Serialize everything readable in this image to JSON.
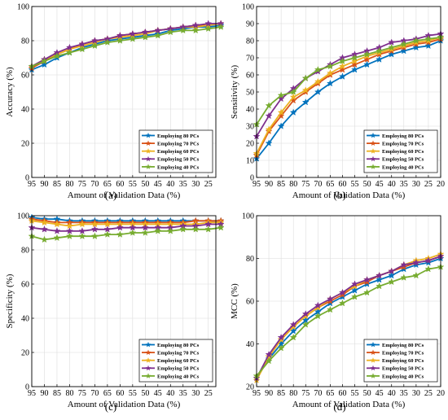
{
  "figure": {
    "background": "#ffffff"
  },
  "chart_data": [
    {
      "type": "line",
      "panel_label": "(a)",
      "xlabel": "Amount of Validation Data (%)",
      "ylabel": "Accuracy (%)",
      "x": [
        95,
        90,
        85,
        80,
        75,
        70,
        65,
        60,
        55,
        50,
        45,
        40,
        35,
        30,
        25,
        20
      ],
      "xticks": [
        95,
        90,
        85,
        80,
        75,
        70,
        65,
        60,
        55,
        50,
        45,
        40,
        35,
        30,
        25
      ],
      "xlim": [
        95,
        22
      ],
      "ylim": [
        0,
        100
      ],
      "yticks": [
        0,
        20,
        40,
        60,
        80,
        100
      ],
      "grid": true,
      "legend_position": "bottom-right",
      "series": [
        {
          "name": "Employing 80 PCs",
          "color": "#0072BD",
          "marker": "star",
          "values": [
            63,
            66,
            70,
            73,
            76,
            78,
            80,
            81,
            82,
            83,
            84,
            86,
            87,
            88,
            88,
            89
          ]
        },
        {
          "name": "Employing 70 PCs",
          "color": "#D95319",
          "marker": "star",
          "values": [
            64,
            68,
            72,
            75,
            78,
            80,
            81,
            83,
            84,
            85,
            86,
            87,
            88,
            89,
            89,
            90
          ]
        },
        {
          "name": "Employing 60 PCs",
          "color": "#EDB120",
          "marker": "star",
          "values": [
            65,
            69,
            72,
            75,
            77,
            79,
            81,
            82,
            83,
            84,
            86,
            87,
            88,
            88,
            89,
            90
          ]
        },
        {
          "name": "Employing 50 PCs",
          "color": "#7E2F8E",
          "marker": "star",
          "values": [
            65,
            69,
            73,
            76,
            78,
            80,
            81,
            83,
            84,
            85,
            86,
            87,
            88,
            89,
            90,
            90
          ]
        },
        {
          "name": "Employing 40 PCs",
          "color": "#77AC30",
          "marker": "star",
          "values": [
            65,
            68,
            71,
            73,
            75,
            77,
            79,
            80,
            81,
            82,
            83,
            85,
            86,
            86,
            87,
            88
          ]
        }
      ]
    },
    {
      "type": "line",
      "panel_label": "(b)",
      "xlabel": "Amount of Validation Data (%)",
      "ylabel": "Sensitivity (%)",
      "x": [
        95,
        90,
        85,
        80,
        75,
        70,
        65,
        60,
        55,
        50,
        45,
        40,
        35,
        30,
        25,
        20
      ],
      "xticks": [
        95,
        90,
        85,
        80,
        75,
        70,
        65,
        60,
        55,
        50,
        45,
        40,
        35,
        30,
        25,
        20
      ],
      "xlim": [
        95,
        20
      ],
      "ylim": [
        0,
        100
      ],
      "yticks": [
        0,
        10,
        20,
        30,
        40,
        50,
        60,
        70,
        80,
        90,
        100
      ],
      "grid": true,
      "legend_position": "bottom-right",
      "series": [
        {
          "name": "Employing 80 PCs",
          "color": "#0072BD",
          "marker": "star",
          "values": [
            11,
            20,
            30,
            38,
            44,
            50,
            55,
            59,
            63,
            66,
            69,
            72,
            74,
            76,
            77,
            80
          ]
        },
        {
          "name": "Employing 70 PCs",
          "color": "#D95319",
          "marker": "star",
          "values": [
            13,
            27,
            36,
            45,
            50,
            55,
            60,
            63,
            66,
            69,
            72,
            74,
            76,
            78,
            79,
            81
          ]
        },
        {
          "name": "Employing 60 PCs",
          "color": "#EDB120",
          "marker": "star",
          "values": [
            14,
            28,
            38,
            47,
            51,
            56,
            61,
            65,
            68,
            71,
            73,
            75,
            77,
            79,
            80,
            82
          ]
        },
        {
          "name": "Employing 50 PCs",
          "color": "#7E2F8E",
          "marker": "star",
          "values": [
            24,
            36,
            46,
            52,
            58,
            62,
            66,
            70,
            72,
            74,
            76,
            79,
            80,
            81,
            83,
            84
          ]
        },
        {
          "name": "Employing 40 PCs",
          "color": "#77AC30",
          "marker": "star",
          "values": [
            31,
            42,
            48,
            50,
            58,
            63,
            65,
            68,
            70,
            72,
            74,
            76,
            78,
            80,
            81,
            82
          ]
        }
      ]
    },
    {
      "type": "line",
      "panel_label": "(c)",
      "xlabel": "Amount of Validation Data (%)",
      "ylabel": "Specificity (%)",
      "x": [
        95,
        90,
        85,
        80,
        75,
        70,
        65,
        60,
        55,
        50,
        45,
        40,
        35,
        30,
        25,
        20
      ],
      "xticks": [
        95,
        90,
        85,
        80,
        75,
        70,
        65,
        60,
        55,
        50,
        45,
        40,
        35,
        30,
        25
      ],
      "xlim": [
        95,
        22
      ],
      "ylim": [
        0,
        100
      ],
      "yticks": [
        0,
        20,
        40,
        60,
        80,
        100
      ],
      "grid": true,
      "legend_position": "bottom-right",
      "series": [
        {
          "name": "Employing 80 PCs",
          "color": "#0072BD",
          "marker": "star",
          "values": [
            99,
            98,
            98,
            97,
            97,
            97,
            97,
            97,
            97,
            97,
            97,
            97,
            97,
            97,
            97,
            97
          ]
        },
        {
          "name": "Employing 70 PCs",
          "color": "#D95319",
          "marker": "star",
          "values": [
            98,
            97,
            96,
            96,
            96,
            96,
            96,
            96,
            96,
            96,
            96,
            96,
            96,
            97,
            97,
            97
          ]
        },
        {
          "name": "Employing 60 PCs",
          "color": "#EDB120",
          "marker": "star",
          "values": [
            97,
            96,
            95,
            94,
            95,
            95,
            95,
            95,
            95,
            95,
            95,
            95,
            95,
            95,
            96,
            96
          ]
        },
        {
          "name": "Employing 50 PCs",
          "color": "#7E2F8E",
          "marker": "star",
          "values": [
            93,
            92,
            91,
            91,
            91,
            92,
            92,
            93,
            93,
            93,
            93,
            93,
            94,
            94,
            95,
            95
          ]
        },
        {
          "name": "Employing 40 PCs",
          "color": "#77AC30",
          "marker": "star",
          "values": [
            88,
            86,
            87,
            88,
            88,
            88,
            89,
            89,
            90,
            90,
            91,
            91,
            92,
            92,
            92,
            93
          ]
        }
      ]
    },
    {
      "type": "line",
      "panel_label": "(d)",
      "xlabel": "Amount of Validation Data (%)",
      "ylabel": "MCC (%)",
      "x": [
        95,
        90,
        85,
        80,
        75,
        70,
        65,
        60,
        55,
        50,
        45,
        40,
        35,
        30,
        25,
        20
      ],
      "xticks": [
        95,
        90,
        85,
        80,
        75,
        70,
        65,
        60,
        55,
        50,
        45,
        40,
        35,
        30,
        25,
        20
      ],
      "xlim": [
        95,
        20
      ],
      "ylim": [
        20,
        100
      ],
      "yticks": [
        20,
        40,
        60,
        80,
        100
      ],
      "grid": true,
      "legend_position": "bottom-right",
      "series": [
        {
          "name": "Employing 80 PCs",
          "color": "#0072BD",
          "marker": "star",
          "values": [
            24,
            33,
            40,
            46,
            51,
            55,
            59,
            62,
            65,
            68,
            70,
            72,
            75,
            77,
            78,
            80
          ]
        },
        {
          "name": "Employing 70 PCs",
          "color": "#D95319",
          "marker": "star",
          "values": [
            24,
            34,
            42,
            48,
            53,
            57,
            60,
            63,
            67,
            69,
            72,
            74,
            76,
            78,
            79,
            81
          ]
        },
        {
          "name": "Employing 60 PCs",
          "color": "#EDB120",
          "marker": "star",
          "values": [
            23,
            34,
            42,
            48,
            53,
            57,
            61,
            64,
            67,
            70,
            72,
            74,
            77,
            79,
            80,
            82
          ]
        },
        {
          "name": "Employing 50 PCs",
          "color": "#7E2F8E",
          "marker": "star",
          "values": [
            24,
            35,
            43,
            49,
            54,
            58,
            61,
            64,
            68,
            70,
            72,
            74,
            77,
            78,
            79,
            81
          ]
        },
        {
          "name": "Employing 40 PCs",
          "color": "#77AC30",
          "marker": "star",
          "values": [
            25,
            32,
            38,
            43,
            49,
            53,
            56,
            59,
            62,
            64,
            67,
            69,
            71,
            72,
            75,
            76
          ]
        }
      ]
    }
  ]
}
